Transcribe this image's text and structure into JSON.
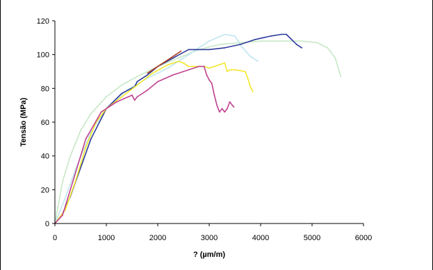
{
  "chart_data": {
    "type": "line",
    "xlabel": "? (µm/m)",
    "ylabel": "Tensão (MPa)",
    "xlim": [
      0,
      6000
    ],
    "ylim": [
      0,
      120
    ],
    "xticks": [
      0,
      1000,
      2000,
      3000,
      4000,
      5000,
      6000
    ],
    "yticks": [
      0,
      20,
      40,
      60,
      80,
      100,
      120
    ],
    "grid": false,
    "legend": "none",
    "series": [
      {
        "color": "#c6e8c6",
        "x": [
          0,
          150,
          300,
          500,
          700,
          1000,
          1300,
          1600,
          2000,
          2400,
          2800,
          3200,
          3600,
          4000,
          4400,
          4800,
          5100,
          5300,
          5450,
          5560
        ],
        "y": [
          0,
          25,
          40,
          55,
          65,
          75,
          82,
          87,
          93,
          98,
          103,
          106,
          107,
          108,
          108,
          108,
          107,
          104,
          98,
          87
        ]
      },
      {
        "color": "#bfe6ee",
        "x": [
          0,
          200,
          400,
          700,
          1000,
          1400,
          1800,
          2200,
          2600,
          3000,
          3300,
          3500,
          3650,
          3800,
          3950
        ],
        "y": [
          0,
          15,
          32,
          54,
          68,
          79,
          86,
          92,
          100,
          108,
          112,
          111,
          104,
          99,
          96
        ]
      },
      {
        "color": "#2d3a9a",
        "x": [
          0,
          150,
          300,
          500,
          700,
          1000,
          1300,
          1550,
          1600,
          1800,
          2000,
          2300,
          2600,
          3000,
          3300,
          3600,
          3900,
          4200,
          4400,
          4500,
          4600,
          4700,
          4800
        ],
        "y": [
          0,
          6,
          16,
          33,
          50,
          68,
          77,
          81,
          84,
          88,
          93,
          98,
          103,
          103,
          104,
          106,
          109,
          111,
          112,
          112,
          109,
          106,
          104
        ]
      },
      {
        "color": "#b04020",
        "x": [
          1800,
          2000,
          2200,
          2350,
          2450
        ],
        "y": [
          89,
          93,
          97,
          100,
          102
        ]
      },
      {
        "color": "#f2e62a",
        "x": [
          0,
          200,
          400,
          600,
          800,
          1000,
          1300,
          1600,
          1900,
          2200,
          2400,
          2500,
          2600,
          2900,
          3000,
          3100,
          3200,
          3300,
          3350,
          3400,
          3500,
          3700,
          3750,
          3800,
          3850
        ],
        "y": [
          0,
          8,
          25,
          45,
          60,
          68,
          75,
          82,
          89,
          94,
          96,
          95,
          93,
          93,
          92,
          93,
          94,
          95,
          90,
          91,
          91,
          90,
          86,
          81,
          78
        ]
      },
      {
        "color": "#c0408f",
        "x": [
          0,
          150,
          350,
          600,
          900,
          1200,
          1500,
          1550,
          1600,
          1800,
          2000,
          2300,
          2600,
          2800,
          2900,
          2950,
          3000,
          3050,
          3100,
          3150,
          3200,
          3250,
          3300,
          3350,
          3400,
          3450,
          3480
        ],
        "y": [
          0,
          5,
          25,
          50,
          66,
          72,
          76,
          73,
          75,
          79,
          84,
          88,
          91,
          93,
          93,
          88,
          85,
          83,
          76,
          70,
          66,
          68,
          66,
          68,
          72,
          70,
          69
        ]
      }
    ]
  }
}
